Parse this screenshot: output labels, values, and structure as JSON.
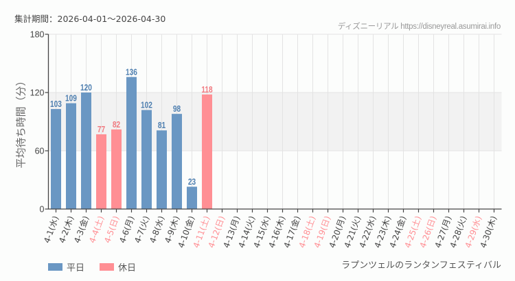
{
  "header": {
    "period": "集計期間：2026-04-01～2026-04-30",
    "credit": "ディズニーリアル https://disneyreal.asumirai.info"
  },
  "colors": {
    "weekday": "#6a97c3",
    "holiday": "#ff8f94",
    "weekday_label": "#4e7fb0",
    "holiday_label": "#f07a80",
    "band": "#f2f2f2",
    "grid": "#e3e3e3",
    "axis": "#444444"
  },
  "legend": [
    {
      "label": "平日",
      "color": "#6a97c3"
    },
    {
      "label": "休日",
      "color": "#ff8f94"
    }
  ],
  "caption": "ラプンツェルのランタンフェスティバル",
  "chart_data": {
    "type": "bar",
    "title": "",
    "xlabel": "",
    "ylabel": "平均待ち時間（分）",
    "ylim": [
      0,
      180
    ],
    "yticks": [
      0,
      60,
      120,
      180
    ],
    "shaded_band": [
      60,
      120
    ],
    "grid": true,
    "legend_position": "bottom-left",
    "categories": [
      "4-1(水)",
      "4-2(木)",
      "4-3(金)",
      "4-4(土)",
      "4-5(日)",
      "4-6(月)",
      "4-7(火)",
      "4-8(水)",
      "4-9(木)",
      "4-10(金)",
      "4-11(土)",
      "4-12(日)",
      "4-13(月)",
      "4-14(火)",
      "4-15(水)",
      "4-16(木)",
      "4-17(金)",
      "4-18(土)",
      "4-19(日)",
      "4-20(月)",
      "4-21(火)",
      "4-22(水)",
      "4-23(木)",
      "4-24(金)",
      "4-25(土)",
      "4-26(日)",
      "4-27(月)",
      "4-28(火)",
      "4-29(水)",
      "4-30(木)"
    ],
    "holiday": [
      false,
      false,
      false,
      true,
      true,
      false,
      false,
      false,
      false,
      false,
      true,
      true,
      false,
      false,
      false,
      false,
      false,
      true,
      true,
      false,
      false,
      false,
      false,
      false,
      true,
      true,
      false,
      false,
      true,
      false
    ],
    "values": [
      103,
      109,
      120,
      77,
      82,
      136,
      102,
      81,
      98,
      23,
      118,
      null,
      null,
      null,
      null,
      null,
      null,
      null,
      null,
      null,
      null,
      null,
      null,
      null,
      null,
      null,
      null,
      null,
      null,
      null
    ],
    "series": [
      {
        "name": "平日",
        "values": [
          103,
          109,
          120,
          null,
          null,
          136,
          102,
          81,
          98,
          23,
          null,
          null,
          null,
          null,
          null,
          null,
          null,
          null,
          null,
          null,
          null,
          null,
          null,
          null,
          null,
          null,
          null,
          null,
          null,
          null
        ]
      },
      {
        "name": "休日",
        "values": [
          null,
          null,
          null,
          77,
          82,
          null,
          null,
          null,
          null,
          null,
          118,
          null,
          null,
          null,
          null,
          null,
          null,
          null,
          null,
          null,
          null,
          null,
          null,
          null,
          null,
          null,
          null,
          null,
          null,
          null
        ]
      }
    ]
  }
}
